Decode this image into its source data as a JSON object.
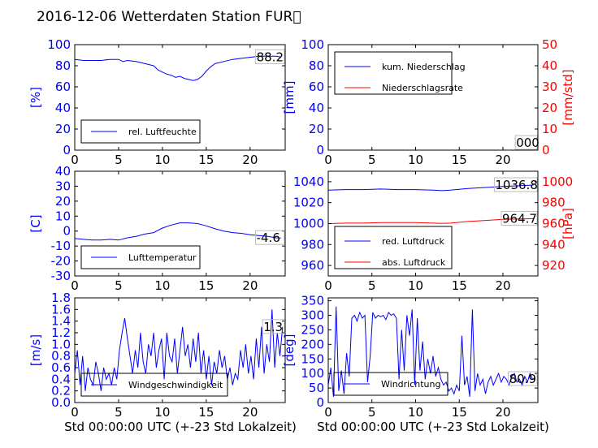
{
  "title": "2016-12-06 Wetterdaten Station FUR\u0000",
  "colors": {
    "left_axis": "#0000ff",
    "right_axis": "#ff0000",
    "series_blue": "#0000ff",
    "series_red": "#ff0000"
  },
  "xlabel": "Std 00:00:00 UTC (+-23 Std Lokalzeit)",
  "chart_data": [
    {
      "id": "humidity",
      "type": "line",
      "ylabel": "[%]",
      "ylim": [
        0,
        100
      ],
      "yticks": [
        0,
        20,
        40,
        60,
        80,
        100
      ],
      "xlim": [
        0,
        24
      ],
      "xticks": [
        0,
        5,
        10,
        15,
        20
      ],
      "last_label": "88.2",
      "legend_position": "lower-left",
      "series": [
        {
          "name": "rel. Luftfeuchte",
          "color": "#0000ff",
          "x": [
            0,
            1,
            2,
            3,
            4,
            5,
            5.5,
            6,
            7,
            8,
            9,
            9.5,
            10,
            10.5,
            11,
            11.5,
            12,
            12.5,
            13,
            13.5,
            14,
            14.5,
            15,
            15.5,
            16,
            17,
            18,
            19,
            20,
            21,
            22,
            23,
            23.5
          ],
          "y": [
            86,
            85,
            85,
            85,
            86,
            86,
            84,
            85,
            84,
            82,
            80,
            76,
            74,
            72,
            71,
            69,
            70,
            68,
            67,
            66,
            67,
            70,
            75,
            79,
            82,
            84,
            86,
            87,
            88,
            89,
            89,
            89,
            88.2
          ]
        }
      ]
    },
    {
      "id": "rain",
      "type": "line",
      "ylabel": "[mm]",
      "ylim": [
        0,
        100
      ],
      "yticks": [
        0,
        20,
        40,
        60,
        80,
        100
      ],
      "ylabel_right": "[mm/std]",
      "ylim_right": [
        0,
        50
      ],
      "yticks_right": [
        0,
        10,
        20,
        30,
        40,
        50
      ],
      "xlim": [
        0,
        24
      ],
      "xticks": [
        0,
        5,
        10,
        15,
        20
      ],
      "last_label": "000",
      "legend_position": "upper-left",
      "series": [
        {
          "name": "kum. Niederschlag",
          "color": "#0000ff",
          "x": [
            0,
            23.5
          ],
          "y": [
            0,
            0
          ]
        },
        {
          "name": "Niederschlagsrate",
          "color": "#ff0000",
          "axis": "right",
          "x": [
            0,
            23.5
          ],
          "y": [
            0,
            0
          ]
        }
      ]
    },
    {
      "id": "temperature",
      "type": "line",
      "ylabel": "[C]",
      "ylim": [
        -30,
        40
      ],
      "yticks": [
        -30,
        -20,
        -10,
        0,
        10,
        20,
        30,
        40
      ],
      "xlim": [
        0,
        24
      ],
      "xticks": [
        0,
        5,
        10,
        15,
        20
      ],
      "last_label": "-4.6",
      "legend_position": "lower-left",
      "series": [
        {
          "name": "Lufttemperatur",
          "color": "#0000ff",
          "x": [
            0,
            1,
            2,
            3,
            4,
            5,
            6,
            7,
            8,
            9,
            10,
            11,
            12,
            13,
            14,
            15,
            16,
            17,
            18,
            19,
            20,
            21,
            22,
            23,
            23.5
          ],
          "y": [
            -5,
            -5.5,
            -6,
            -6,
            -5.5,
            -6,
            -4.5,
            -3.5,
            -2,
            -1,
            2,
            4,
            5.5,
            5.5,
            5,
            3.5,
            1.5,
            0,
            -1,
            -1.5,
            -2.5,
            -3,
            -3.5,
            -4.5,
            -4.6
          ]
        }
      ]
    },
    {
      "id": "pressure",
      "type": "line",
      "ylabel": "",
      "ylim": [
        950,
        1050
      ],
      "yticks": [
        960,
        980,
        1000,
        1020,
        1040
      ],
      "ylabel_right": "[hPa]",
      "ylim_right": [
        910,
        1010
      ],
      "yticks_right": [
        920,
        940,
        960,
        980,
        1000
      ],
      "xlim": [
        0,
        24
      ],
      "xticks": [
        0,
        5,
        10,
        15,
        20
      ],
      "last_labels": [
        "1036.8",
        "964.7"
      ],
      "legend_position": "lower-left",
      "series": [
        {
          "name": "red. Luftdruck",
          "color": "#0000ff",
          "x": [
            0,
            2,
            4,
            6,
            8,
            10,
            12,
            13,
            14,
            16,
            18,
            20,
            22,
            23.5
          ],
          "y": [
            1032,
            1032.5,
            1032.5,
            1033,
            1032.5,
            1032.5,
            1032,
            1031.5,
            1032,
            1033.5,
            1034.5,
            1035.5,
            1036.2,
            1036.8
          ]
        },
        {
          "name": "abs. Luftdruck",
          "color": "#ff0000",
          "axis": "right",
          "x": [
            0,
            2,
            4,
            6,
            8,
            10,
            12,
            13,
            14,
            16,
            18,
            20,
            22,
            23.5
          ],
          "y": [
            960,
            960.5,
            960.5,
            961,
            961,
            961,
            960.5,
            960.2,
            960.5,
            962,
            963,
            964,
            964.5,
            964.7
          ]
        }
      ]
    },
    {
      "id": "windspeed",
      "type": "line",
      "ylabel": "[m/s]",
      "ylim": [
        0,
        1.8
      ],
      "yticks": [
        0.0,
        0.2,
        0.4,
        0.6,
        0.8,
        1.0,
        1.2,
        1.4,
        1.6,
        1.8
      ],
      "xlim": [
        0,
        24
      ],
      "xticks": [
        0,
        5,
        10,
        15,
        20
      ],
      "last_label": "1.3",
      "legend_position": "lower-center",
      "series": [
        {
          "name": "Windgeschwindigkeit",
          "color": "#0000ff",
          "x": [
            0,
            0.3,
            0.6,
            0.9,
            1.2,
            1.5,
            1.8,
            2.1,
            2.4,
            2.7,
            3,
            3.3,
            3.6,
            3.9,
            4.2,
            4.5,
            4.8,
            5.1,
            5.4,
            5.7,
            6,
            6.3,
            6.6,
            6.9,
            7.2,
            7.5,
            7.8,
            8.1,
            8.4,
            8.7,
            9,
            9.3,
            9.6,
            9.9,
            10.2,
            10.5,
            10.8,
            11.1,
            11.4,
            11.7,
            12,
            12.3,
            12.6,
            12.9,
            13.2,
            13.5,
            13.8,
            14.1,
            14.4,
            14.7,
            15,
            15.3,
            15.6,
            15.9,
            16.2,
            16.5,
            16.8,
            17.1,
            17.4,
            17.7,
            18,
            18.3,
            18.6,
            18.9,
            19.2,
            19.5,
            19.8,
            20.1,
            20.4,
            20.7,
            21,
            21.3,
            21.6,
            21.9,
            22.2,
            22.5,
            22.8,
            23.1,
            23.4,
            23.7
          ],
          "y": [
            0.5,
            0.9,
            0.3,
            0.8,
            0.2,
            0.6,
            0.4,
            0.3,
            0.7,
            0.5,
            0.2,
            0.6,
            0.4,
            0.5,
            0.3,
            0.6,
            0.4,
            0.9,
            1.2,
            1.45,
            1.1,
            0.8,
            0.5,
            0.9,
            0.6,
            1.2,
            0.7,
            0.5,
            1.0,
            0.8,
            1.2,
            0.6,
            0.9,
            1.1,
            0.4,
            1.2,
            0.8,
            0.7,
            1.1,
            0.5,
            0.9,
            1.3,
            0.8,
            1.0,
            0.6,
            1.1,
            0.7,
            1.2,
            0.5,
            0.9,
            0.4,
            0.8,
            0.3,
            0.7,
            0.5,
            0.9,
            0.6,
            0.8,
            0.4,
            0.6,
            0.3,
            0.5,
            0.4,
            0.9,
            0.6,
            1.0,
            0.5,
            0.8,
            0.4,
            1.1,
            0.6,
            1.3,
            0.5,
            1.0,
            0.7,
            1.6,
            0.6,
            1.2,
            0.8,
            1.3
          ]
        }
      ]
    },
    {
      "id": "winddir",
      "type": "line",
      "ylabel": "[deg]",
      "ylim": [
        0,
        360
      ],
      "yticks": [
        0,
        50,
        100,
        150,
        200,
        250,
        300,
        350
      ],
      "xlim": [
        0,
        24
      ],
      "xticks": [
        0,
        5,
        10,
        15,
        20
      ],
      "last_label": "80.9",
      "legend_position": "lower-left",
      "series": [
        {
          "name": "Windrichtung",
          "color": "#0000ff",
          "x": [
            0,
            0.3,
            0.6,
            0.9,
            1.2,
            1.5,
            1.8,
            2.1,
            2.4,
            2.7,
            3,
            3.3,
            3.6,
            3.9,
            4.2,
            4.5,
            4.8,
            5.1,
            5.4,
            5.7,
            6,
            6.3,
            6.6,
            6.9,
            7.2,
            7.5,
            7.8,
            8.1,
            8.4,
            8.7,
            9,
            9.3,
            9.6,
            9.9,
            10.2,
            10.5,
            10.8,
            11.1,
            11.4,
            11.7,
            12,
            12.3,
            12.6,
            12.9,
            13.2,
            13.5,
            13.8,
            14.1,
            14.4,
            14.7,
            15,
            15.3,
            15.6,
            15.9,
            16.2,
            16.5,
            16.8,
            17.1,
            17.4,
            17.7,
            18,
            18.3,
            18.6,
            18.9,
            19.2,
            19.5,
            19.8,
            20.1,
            20.4,
            20.7,
            21,
            21.3,
            21.6,
            21.9,
            22.2,
            22.5,
            22.8,
            23.1,
            23.4,
            23.7
          ],
          "y": [
            60,
            120,
            20,
            330,
            40,
            110,
            30,
            170,
            90,
            290,
            300,
            280,
            310,
            290,
            300,
            70,
            160,
            310,
            290,
            300,
            295,
            300,
            285,
            310,
            300,
            305,
            290,
            80,
            250,
            110,
            300,
            230,
            320,
            60,
            290,
            110,
            210,
            80,
            150,
            100,
            160,
            90,
            120,
            80,
            60,
            70,
            40,
            50,
            30,
            60,
            40,
            230,
            60,
            90,
            20,
            320,
            40,
            100,
            60,
            80,
            30,
            70,
            90,
            60,
            80,
            100,
            70,
            90,
            80,
            60,
            90,
            100,
            70,
            80,
            60,
            90,
            70,
            100,
            80,
            81
          ]
        }
      ]
    }
  ]
}
